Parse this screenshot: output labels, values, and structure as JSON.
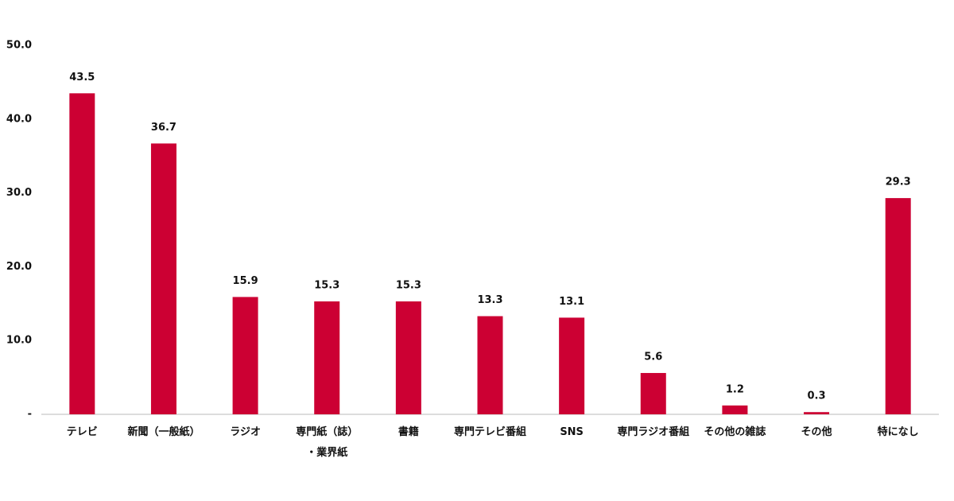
{
  "chart_data": {
    "type": "bar",
    "categories": [
      "テレビ",
      "新聞（一般紙）",
      "ラジオ",
      "専門紙（誌）\n・業界紙",
      "書籍",
      "専門テレビ番組",
      "SNS",
      "専門ラジオ番組",
      "その他の雑誌",
      "その他",
      "特になし"
    ],
    "values": [
      43.5,
      36.7,
      15.9,
      15.3,
      15.3,
      13.3,
      13.1,
      5.6,
      1.2,
      0.3,
      29.3
    ],
    "color": "#cc0033",
    "ylim": [
      0,
      50
    ],
    "yticks": [
      {
        "value": 0,
        "label": "-"
      },
      {
        "value": 10,
        "label": "10.0"
      },
      {
        "value": 20,
        "label": "20.0"
      },
      {
        "value": 30,
        "label": "30.0"
      },
      {
        "value": 40,
        "label": "40.0"
      },
      {
        "value": 50,
        "label": "50.0"
      }
    ],
    "grid": false
  }
}
